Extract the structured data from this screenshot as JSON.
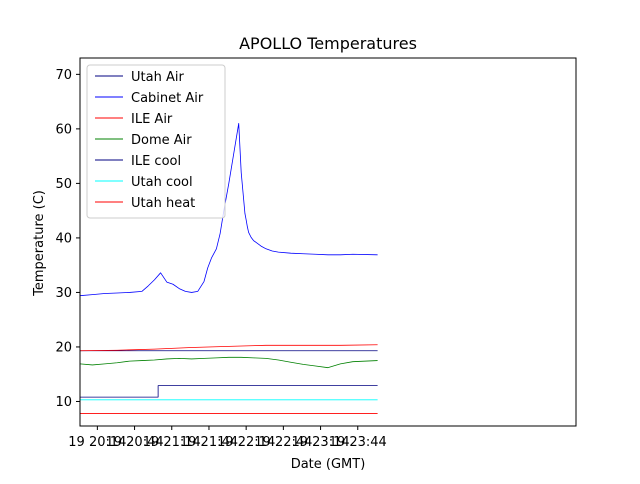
{
  "chart_data": {
    "type": "line",
    "title": "APOLLO Temperatures",
    "xlabel": "Date (GMT)",
    "ylabel": "Temperature (C)",
    "xlim": [
      0,
      400
    ],
    "ylim": [
      5.5,
      73
    ],
    "x_unit": "minutes after 20:00 GMT on day 19",
    "xticks": [
      {
        "x": 14,
        "label": "19 20:14"
      },
      {
        "x": 44,
        "label": "19 20:44"
      },
      {
        "x": 74,
        "label": "19 21:14"
      },
      {
        "x": 104,
        "label": "19 21:44"
      },
      {
        "x": 134,
        "label": "19 22:14"
      },
      {
        "x": 164,
        "label": "19 22:44"
      },
      {
        "x": 194,
        "label": "19 23:14"
      },
      {
        "x": 224,
        "label": "19 23:44"
      }
    ],
    "yticks": [
      10,
      20,
      30,
      40,
      50,
      60,
      70
    ],
    "legend_position": "top-left",
    "series": [
      {
        "name": "Utah Air",
        "color": "#000080",
        "x": [
          0,
          240
        ],
        "y": [
          19.3,
          19.3
        ]
      },
      {
        "name": "Cabinet Air",
        "color": "#0000ff",
        "x": [
          0,
          10,
          20,
          30,
          40,
          50,
          55,
          60,
          65,
          70,
          75,
          80,
          85,
          90,
          95,
          100,
          103,
          106,
          110,
          113,
          116,
          120,
          124,
          128,
          130,
          132,
          133,
          134,
          135,
          136,
          138,
          140,
          143,
          146,
          150,
          155,
          160,
          170,
          180,
          190,
          200,
          210,
          220,
          240
        ],
        "y": [
          29.4,
          29.6,
          29.8,
          29.9,
          30.0,
          30.2,
          31.2,
          32.3,
          33.6,
          31.9,
          31.5,
          30.7,
          30.2,
          30.0,
          30.2,
          32.0,
          34.5,
          36.3,
          38.0,
          40.8,
          45.0,
          50.0,
          55.5,
          61.0,
          52.0,
          47.0,
          44.5,
          43.3,
          42.0,
          41.0,
          40.1,
          39.5,
          39.0,
          38.5,
          38.0,
          37.6,
          37.4,
          37.2,
          37.1,
          37.0,
          36.9,
          36.9,
          37.0,
          36.9
        ]
      },
      {
        "name": "ILE Air",
        "color": "#ff0000",
        "x": [
          0,
          30,
          60,
          90,
          120,
          150,
          180,
          210,
          240
        ],
        "y": [
          19.3,
          19.4,
          19.6,
          19.9,
          20.1,
          20.3,
          20.3,
          20.3,
          20.4
        ]
      },
      {
        "name": "Dome Air",
        "color": "#008000",
        "x": [
          0,
          10,
          20,
          30,
          40,
          50,
          60,
          70,
          80,
          90,
          100,
          110,
          120,
          130,
          140,
          150,
          160,
          170,
          180,
          190,
          200,
          210,
          220,
          240
        ],
        "y": [
          16.9,
          16.7,
          16.9,
          17.1,
          17.4,
          17.5,
          17.6,
          17.8,
          17.9,
          17.8,
          17.9,
          18.0,
          18.1,
          18.1,
          18.0,
          17.9,
          17.6,
          17.2,
          16.8,
          16.5,
          16.2,
          16.9,
          17.3,
          17.5
        ]
      },
      {
        "name": "ILE cool",
        "color": "#000080",
        "step": true,
        "x": [
          0,
          63,
          63,
          240
        ],
        "y": [
          10.8,
          10.8,
          12.9,
          12.9
        ]
      },
      {
        "name": "Utah cool",
        "color": "#00ffff",
        "x": [
          0,
          240
        ],
        "y": [
          10.3,
          10.3
        ]
      },
      {
        "name": "Utah heat",
        "color": "#ff0000",
        "x": [
          0,
          240
        ],
        "y": [
          7.8,
          7.8
        ]
      }
    ]
  }
}
